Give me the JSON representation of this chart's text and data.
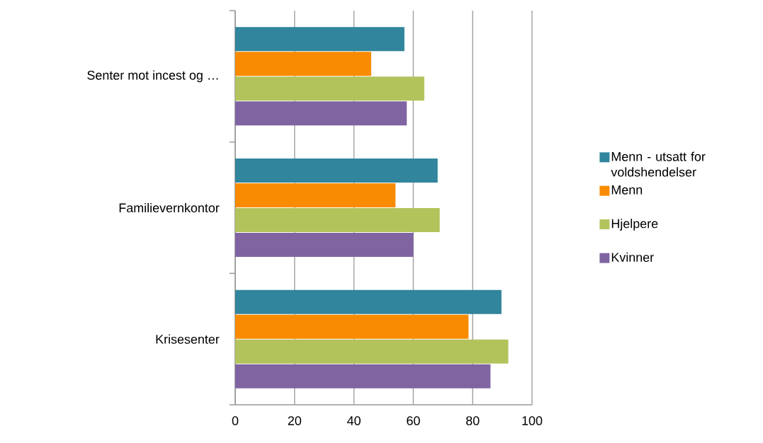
{
  "chart_data": {
    "type": "bar",
    "orientation": "horizontal",
    "categories": [
      "Senter mot incest og …",
      "Familievernkontor",
      "Krisesenter"
    ],
    "series": [
      {
        "name": "Menn - utsatt for voldshendelser",
        "color": "#31859c",
        "values": [
          57.0,
          68.2,
          89.7
        ]
      },
      {
        "name": "Menn",
        "color": "#f98b00",
        "values": [
          45.8,
          54.0,
          78.6
        ]
      },
      {
        "name": "Hjelpere",
        "color": "#b3c35c",
        "values": [
          63.7,
          68.9,
          92.0
        ]
      },
      {
        "name": "Kvinner",
        "color": "#8064a2",
        "values": [
          57.8,
          60.0,
          86.0
        ]
      }
    ],
    "xlim": [
      0,
      100
    ],
    "xticks": [
      0,
      20,
      40,
      60,
      80,
      100
    ],
    "grid": "x",
    "legend": "right"
  }
}
